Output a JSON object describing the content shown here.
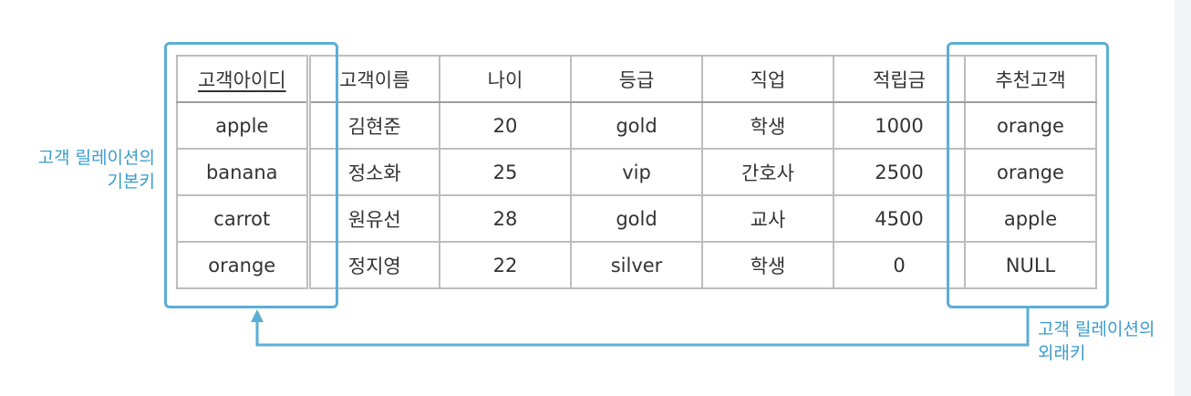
{
  "table": {
    "headers": [
      {
        "label": "고객아이디",
        "primary_key": true
      },
      {
        "label": "고객이름"
      },
      {
        "label": "나이"
      },
      {
        "label": "등급"
      },
      {
        "label": "직업"
      },
      {
        "label": "적립금"
      },
      {
        "label": "추천고객"
      }
    ],
    "rows": [
      [
        "apple",
        "김현준",
        "20",
        "gold",
        "학생",
        "1000",
        "orange"
      ],
      [
        "banana",
        "정소화",
        "25",
        "vip",
        "간호사",
        "2500",
        "orange"
      ],
      [
        "carrot",
        "원유선",
        "28",
        "gold",
        "교사",
        "4500",
        "apple"
      ],
      [
        "orange",
        "정지영",
        "22",
        "silver",
        "학생",
        "0",
        "NULL"
      ]
    ]
  },
  "annotations": {
    "primary_key": [
      "고객 릴레이션의",
      "기본키"
    ],
    "foreign_key": [
      "고객 릴레이션의",
      "외래키"
    ]
  },
  "colors": {
    "highlight": "#5aafd6",
    "annotation_text": "#3a9ccd",
    "grid": "#bdbdbd"
  }
}
